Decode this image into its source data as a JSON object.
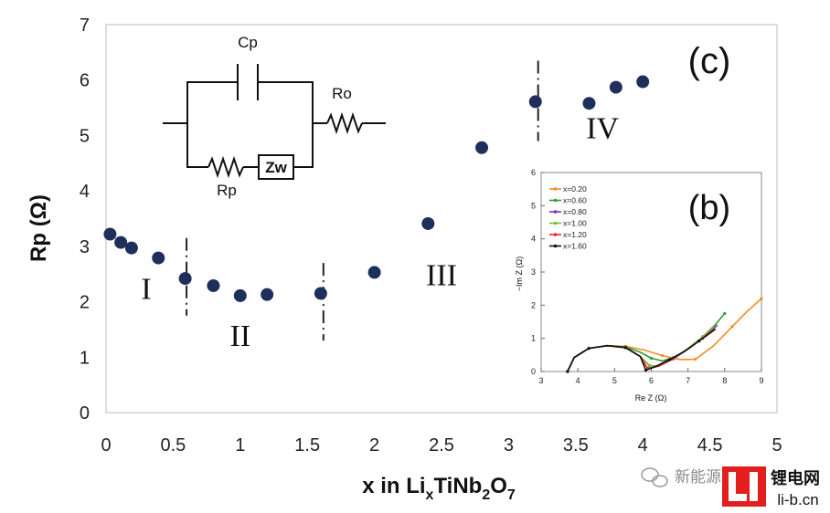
{
  "chart_data": [
    {
      "panel": "(c)",
      "type": "scatter",
      "ylabel": "Rp (Ω)",
      "xlabel_parts": {
        "pre": "x in Li",
        "x_sub": "x",
        "mid1": "TiNb",
        "sub1": "2",
        "mid2": "O",
        "sub2": "7"
      },
      "xlim": [
        0,
        5
      ],
      "ylim": [
        0,
        7
      ],
      "xticks": [
        "0",
        "0.5",
        "1",
        "1.5",
        "2",
        "2.5",
        "3",
        "3.5",
        "4",
        "4.5",
        "5"
      ],
      "yticks": [
        "0",
        "1",
        "2",
        "3",
        "4",
        "5",
        "6",
        "7"
      ],
      "points": [
        {
          "x": 0.03,
          "y": 3.22
        },
        {
          "x": 0.11,
          "y": 3.07
        },
        {
          "x": 0.19,
          "y": 2.97
        },
        {
          "x": 0.39,
          "y": 2.79
        },
        {
          "x": 0.59,
          "y": 2.42
        },
        {
          "x": 0.8,
          "y": 2.29
        },
        {
          "x": 1.0,
          "y": 2.11
        },
        {
          "x": 1.2,
          "y": 2.13
        },
        {
          "x": 1.6,
          "y": 2.15
        },
        {
          "x": 2.0,
          "y": 2.53
        },
        {
          "x": 2.4,
          "y": 3.41
        },
        {
          "x": 2.8,
          "y": 4.78
        },
        {
          "x": 3.2,
          "y": 5.61
        },
        {
          "x": 3.6,
          "y": 5.58
        },
        {
          "x": 3.8,
          "y": 5.87
        },
        {
          "x": 4.0,
          "y": 5.97
        }
      ],
      "region_dividers": [
        {
          "x": 0.6,
          "y0": 1.75,
          "y1": 3.15
        },
        {
          "x": 1.62,
          "y0": 1.3,
          "y1": 2.7
        },
        {
          "x": 3.22,
          "y0": 4.9,
          "y1": 6.35
        }
      ],
      "region_labels": [
        {
          "text": "I",
          "x": 0.3,
          "y": 2.05
        },
        {
          "text": "II",
          "x": 1.0,
          "y": 1.2
        },
        {
          "text": "III",
          "x": 2.5,
          "y": 2.3
        },
        {
          "text": "IV",
          "x": 3.7,
          "y": 4.95
        }
      ],
      "marker_color": "#1f2f5c"
    },
    {
      "panel": "(b)",
      "type": "line",
      "xlabel": "Re Z (Ω)",
      "ylabel": "−Im Z (Ω)",
      "xlim": [
        3,
        9
      ],
      "ylim": [
        0,
        6
      ],
      "xticks": [
        "3",
        "4",
        "5",
        "6",
        "7",
        "8",
        "9"
      ],
      "yticks": [
        "0",
        "1",
        "2",
        "3",
        "4",
        "5",
        "6"
      ],
      "series": [
        {
          "name": "x=0.20",
          "color": "#f28c28",
          "points": [
            [
              3.72,
              0
            ],
            [
              3.9,
              0.42
            ],
            [
              4.3,
              0.7
            ],
            [
              4.8,
              0.78
            ],
            [
              5.3,
              0.76
            ],
            [
              5.8,
              0.65
            ],
            [
              6.3,
              0.48
            ],
            [
              6.8,
              0.36
            ],
            [
              7.2,
              0.37
            ],
            [
              7.7,
              0.78
            ],
            [
              8.2,
              1.35
            ],
            [
              8.6,
              1.8
            ],
            [
              9.0,
              2.2
            ]
          ]
        },
        {
          "name": "x=0.60",
          "color": "#2ca02c",
          "points": [
            [
              3.72,
              0
            ],
            [
              3.9,
              0.42
            ],
            [
              4.3,
              0.7
            ],
            [
              4.8,
              0.78
            ],
            [
              5.3,
              0.74
            ],
            [
              5.7,
              0.58
            ],
            [
              6.0,
              0.4
            ],
            [
              6.3,
              0.32
            ],
            [
              6.6,
              0.42
            ],
            [
              7.0,
              0.68
            ],
            [
              7.4,
              1.05
            ],
            [
              7.75,
              1.42
            ],
            [
              8.0,
              1.75
            ]
          ]
        },
        {
          "name": "x=0.80",
          "color": "#7b2fbe",
          "points": [
            [
              3.72,
              0
            ],
            [
              3.9,
              0.42
            ],
            [
              4.3,
              0.7
            ],
            [
              4.8,
              0.78
            ],
            [
              5.3,
              0.72
            ],
            [
              5.7,
              0.45
            ],
            [
              5.95,
              0.18
            ],
            [
              6.2,
              0.16
            ],
            [
              6.6,
              0.38
            ],
            [
              7.0,
              0.68
            ],
            [
              7.5,
              1.1
            ],
            [
              7.8,
              1.4
            ]
          ]
        },
        {
          "name": "x=1.00",
          "color": "#6abf40",
          "points": [
            [
              3.72,
              0
            ],
            [
              3.9,
              0.42
            ],
            [
              4.3,
              0.7
            ],
            [
              4.8,
              0.78
            ],
            [
              5.3,
              0.72
            ],
            [
              5.7,
              0.45
            ],
            [
              5.95,
              0.18
            ],
            [
              6.2,
              0.16
            ],
            [
              6.6,
              0.4
            ],
            [
              7.0,
              0.7
            ],
            [
              7.4,
              1.05
            ],
            [
              7.7,
              1.35
            ]
          ]
        },
        {
          "name": "x=1.20",
          "color": "#e8281f",
          "points": [
            [
              3.72,
              0
            ],
            [
              3.9,
              0.42
            ],
            [
              4.3,
              0.7
            ],
            [
              4.8,
              0.78
            ],
            [
              5.3,
              0.72
            ],
            [
              5.7,
              0.45
            ],
            [
              5.9,
              0.1
            ],
            [
              6.2,
              0.16
            ],
            [
              6.6,
              0.4
            ],
            [
              7.0,
              0.68
            ],
            [
              7.4,
              1.0
            ],
            [
              7.65,
              1.25
            ]
          ]
        },
        {
          "name": "x=1.60",
          "color": "#111111",
          "points": [
            [
              3.72,
              0
            ],
            [
              3.9,
              0.42
            ],
            [
              4.3,
              0.7
            ],
            [
              4.8,
              0.78
            ],
            [
              5.3,
              0.72
            ],
            [
              5.7,
              0.45
            ],
            [
              5.85,
              0.04
            ],
            [
              6.1,
              0.14
            ],
            [
              6.5,
              0.36
            ],
            [
              6.9,
              0.6
            ],
            [
              7.3,
              0.92
            ],
            [
              7.75,
              1.28
            ]
          ]
        }
      ]
    }
  ],
  "circuit": {
    "labels": {
      "cp": "Cp",
      "ro": "Ro",
      "rp": "Rp",
      "zw": "Zw"
    }
  },
  "panel_labels": {
    "c": "(c)",
    "b": "(b)"
  },
  "watermark": {
    "wechat_text": "新能源",
    "brand_cn": "锂电网",
    "brand_url": "li-b.cn",
    "brand_color": "#e41d1d"
  }
}
